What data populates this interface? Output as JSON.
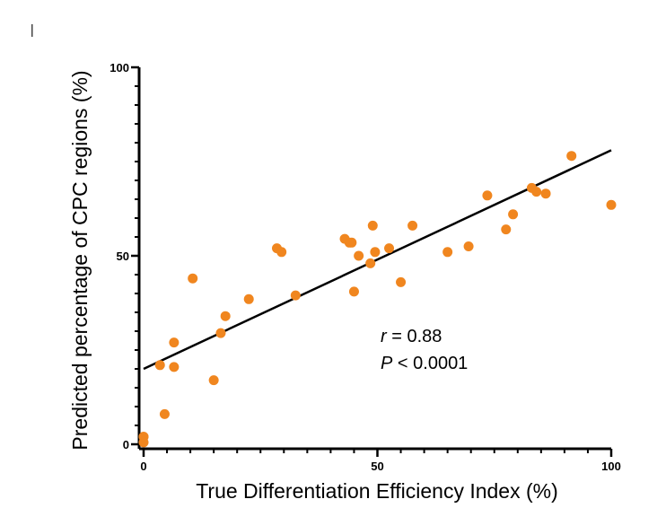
{
  "chart_data": {
    "type": "scatter",
    "title": "",
    "xlabel": "True Differentiation Efficiency Index  (%)",
    "ylabel": "Predicted percentage of CPC regions (%)",
    "xlim": [
      0,
      100
    ],
    "ylim": [
      0,
      100
    ],
    "x_ticks": [
      "0",
      "50",
      "100"
    ],
    "y_ticks": [
      "0",
      "50",
      "100"
    ],
    "grid": false,
    "marker_color": "#F0861F",
    "line_color": "#000000",
    "series": [
      {
        "x": [
          0,
          0,
          0,
          3.5,
          4.5,
          6.5,
          6.5,
          10.5,
          15,
          16.5,
          17.5,
          22.5,
          28.5,
          29.5,
          32.5,
          43,
          44,
          44.5,
          45,
          46,
          48.5,
          49,
          49.5,
          52.5,
          55,
          57.5,
          65,
          69.5,
          73.5,
          77.5,
          79,
          83,
          84,
          86,
          91.5,
          100
        ],
        "y": [
          0.5,
          2,
          2,
          21,
          8,
          27,
          20.5,
          44,
          17,
          29.5,
          34,
          38.5,
          52,
          51,
          39.5,
          54.5,
          53.5,
          53.5,
          40.5,
          50,
          48,
          58,
          51,
          52,
          43,
          58,
          51,
          52.5,
          66,
          57,
          61,
          68,
          67,
          66.5,
          76.5,
          63.5
        ]
      }
    ],
    "fit_line": {
      "x": [
        0,
        100
      ],
      "y": [
        20,
        78
      ]
    },
    "stats": {
      "r_label": "r",
      "r_value": " = 0.88",
      "p_label": "P",
      "p_value": " < 0.0001"
    }
  }
}
